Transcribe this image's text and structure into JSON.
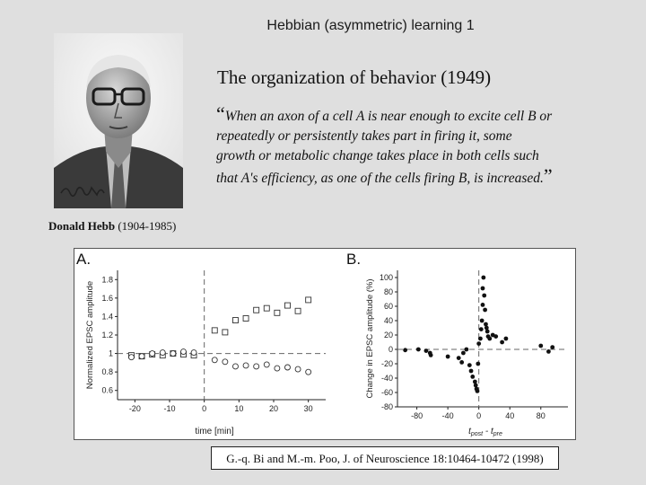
{
  "slide": {
    "title": "Hebbian (asymmetric) learning 1",
    "book": "The organization of behavior (1949)",
    "quote": {
      "open": "“",
      "lines": [
        "When an axon of a cell A is near enough to excite cell B or",
        "repeatedly or persistently takes part in firing it, some",
        "growth or metabolic change takes place in both cells such",
        "that A's efficiency, as one of the cells firing B, is increased."
      ],
      "close": "”"
    },
    "caption": {
      "name": "Donald Hebb",
      "years": "(1904-1985)"
    },
    "citation": "G.-q. Bi and M.-m. Poo, J. of Neuroscience 18:10464-10472 (1998)"
  },
  "figure": {
    "panel_a_label": "A.",
    "panel_b_label": "B.",
    "portrait_signature_icon": "signature-icon"
  },
  "chart_data": [
    {
      "type": "scatter",
      "panel": "A.",
      "xlabel": "time [min]",
      "ylabel": "Normalized EPSC amplitude",
      "xlim": [
        -25,
        35
      ],
      "ylim": [
        0.5,
        1.9
      ],
      "xticks": [
        -20,
        -10,
        0,
        10,
        20,
        30
      ],
      "yticks": [
        0.6,
        0.8,
        1,
        1.2,
        1.4,
        1.6,
        1.8
      ],
      "reference_lines": {
        "x": 0,
        "y": 1
      },
      "series": [
        {
          "marker": "square",
          "x": [
            -21,
            -18,
            -15,
            -12,
            -9,
            -6,
            -3,
            3,
            6,
            9,
            12,
            15,
            18,
            21,
            24,
            27,
            30
          ],
          "y": [
            0.98,
            0.97,
            0.99,
            0.98,
            1.0,
            0.99,
            0.98,
            1.25,
            1.23,
            1.36,
            1.38,
            1.47,
            1.49,
            1.44,
            1.52,
            1.46,
            1.58
          ]
        },
        {
          "marker": "circle",
          "x": [
            -21,
            -18,
            -15,
            -12,
            -9,
            -6,
            -3,
            3,
            6,
            9,
            12,
            15,
            18,
            21,
            24,
            27,
            30
          ],
          "y": [
            0.96,
            0.97,
            1.0,
            1.01,
            1.0,
            1.02,
            1.01,
            0.93,
            0.91,
            0.86,
            0.87,
            0.86,
            0.88,
            0.84,
            0.85,
            0.83,
            0.8
          ]
        }
      ]
    },
    {
      "type": "scatter",
      "panel": "B.",
      "xlabel": "t_post - t_pre",
      "xlabel_parts": [
        "t",
        "post",
        " - t",
        "pre"
      ],
      "ylabel": "Change in EPSC amplitude (%)",
      "xlim": [
        -105,
        115
      ],
      "ylim": [
        -80,
        110
      ],
      "xticks": [
        -80,
        -40,
        0,
        40,
        80
      ],
      "yticks": [
        -80,
        -60,
        -40,
        -20,
        0,
        20,
        40,
        60,
        80,
        100
      ],
      "reference_lines": {
        "x": 0,
        "y": 0
      },
      "points": {
        "x": [
          -95,
          -78,
          -68,
          -63,
          -62,
          -40,
          -26,
          -22,
          -20,
          -16,
          -12,
          -10,
          -8,
          -5,
          -4,
          -3,
          -2,
          -1,
          0,
          2,
          3,
          4,
          5,
          5,
          6,
          7,
          8,
          9,
          10,
          11,
          12,
          14,
          18,
          22,
          30,
          35,
          80,
          90,
          95
        ],
        "y": [
          -1,
          0,
          -2,
          -5,
          -8,
          -10,
          -12,
          -18,
          -5,
          0,
          -22,
          -30,
          -38,
          -45,
          -50,
          -55,
          -58,
          -20,
          8,
          15,
          28,
          40,
          62,
          85,
          100,
          75,
          55,
          35,
          30,
          25,
          18,
          15,
          20,
          18,
          10,
          15,
          5,
          -3,
          3
        ]
      }
    }
  ]
}
